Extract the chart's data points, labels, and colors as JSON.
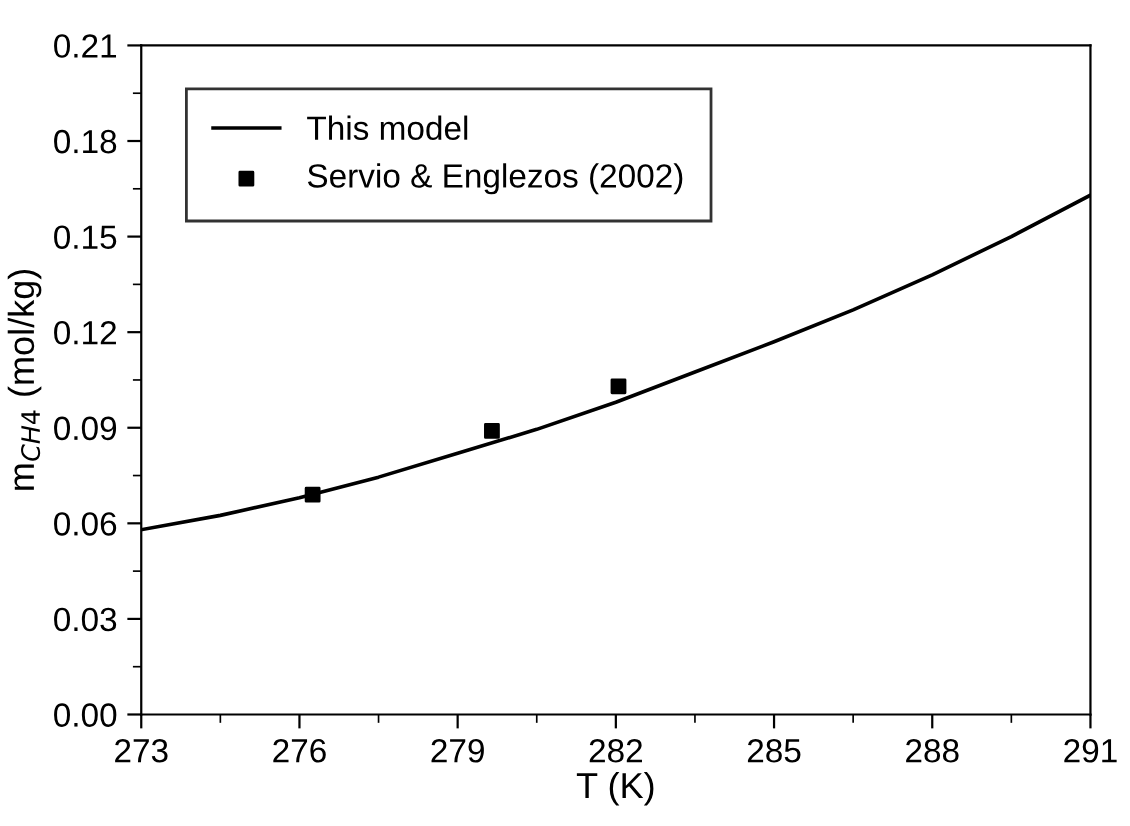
{
  "chart_data": {
    "type": "line",
    "xlabel": "T (K)",
    "ylabel": "m$_{CH4}$ (mol/kg)",
    "xlim": [
      273,
      291
    ],
    "xticks": [
      273,
      276,
      279,
      282,
      285,
      288,
      291
    ],
    "ylim": [
      0,
      0.21
    ],
    "yticks": [
      {
        "value": 0,
        "label": "0.00"
      },
      0.03,
      0.06,
      0.09,
      0.12,
      0.15,
      0.18,
      0.21
    ],
    "legend": "top left",
    "grid": false,
    "series": [
      {
        "name": "This model",
        "color": "#000000",
        "marker": "none",
        "line_style": "solid",
        "x": [
          273,
          274.5,
          276,
          277.5,
          279,
          280.5,
          282,
          283.5,
          285,
          286.5,
          288,
          289.5,
          291
        ],
        "values": [
          0.058,
          0.0625,
          0.068,
          0.0745,
          0.082,
          0.0895,
          0.098,
          0.1075,
          0.117,
          0.127,
          0.138,
          0.15,
          0.163
        ]
      },
      {
        "name": "Servio & Englezos (2002)",
        "type": "scatter",
        "color": "#000000",
        "marker": "square",
        "x": [
          276.25,
          279.65,
          282.05
        ],
        "values": [
          0.069,
          0.089,
          0.103
        ]
      }
    ]
  }
}
